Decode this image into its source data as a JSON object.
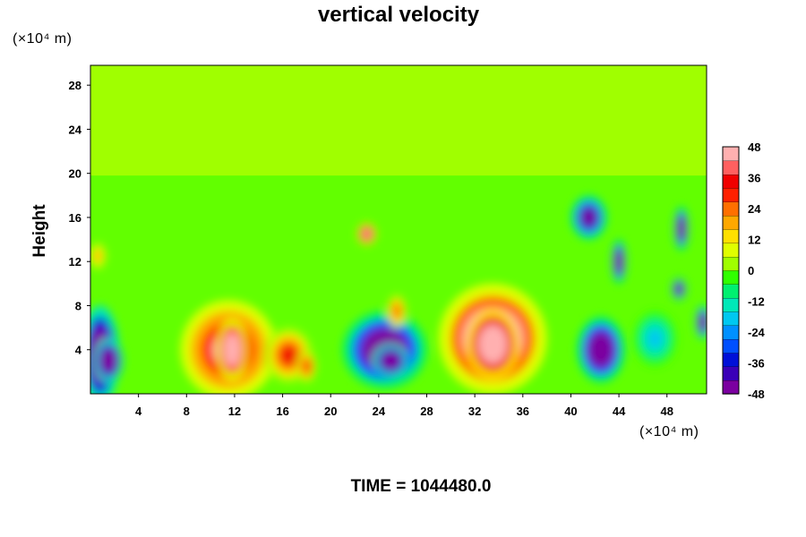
{
  "chart_data": {
    "type": "heatmap",
    "title": "vertical velocity",
    "ylabel": "Height",
    "x_unit": "(×10⁴ m)",
    "y_unit": "(×10⁴ m)",
    "footer": "TIME = 1044480.0",
    "xlim": [
      0,
      51.3
    ],
    "ylim": [
      0,
      29.8
    ],
    "x_ticks": [
      "4",
      "8",
      "12",
      "16",
      "20",
      "24",
      "28",
      "32",
      "36",
      "40",
      "44",
      "48"
    ],
    "y_ticks": [
      "4",
      "8",
      "12",
      "16",
      "20",
      "24",
      "28"
    ],
    "colorbar": {
      "min": -48,
      "max": 48,
      "ticks": [
        "48",
        "36",
        "24",
        "12",
        "0",
        "-12",
        "-24",
        "-36",
        "-48"
      ]
    },
    "background_value": 0,
    "features": [
      {
        "x": 0.8,
        "y": 3.5,
        "rx": 1.6,
        "ry": 4.5,
        "value": -46
      },
      {
        "x": 1.5,
        "y": 3.0,
        "rx": 1.2,
        "ry": 2.0,
        "value": -48
      },
      {
        "x": 0.6,
        "y": 12.5,
        "rx": 0.7,
        "ry": 1.2,
        "value": 12
      },
      {
        "x": 11.5,
        "y": 4.0,
        "rx": 4.0,
        "ry": 4.5,
        "value": 26
      },
      {
        "x": 11.8,
        "y": 4.0,
        "rx": 1.3,
        "ry": 2.8,
        "value": 38
      },
      {
        "x": 16.5,
        "y": 3.5,
        "rx": 2.0,
        "ry": 2.5,
        "value": 20
      },
      {
        "x": 18.0,
        "y": 2.5,
        "rx": 0.8,
        "ry": 1.5,
        "value": 18
      },
      {
        "x": 23.0,
        "y": 14.5,
        "rx": 0.8,
        "ry": 1.0,
        "value": 30
      },
      {
        "x": 24.5,
        "y": 4.0,
        "rx": 3.5,
        "ry": 3.5,
        "value": -40
      },
      {
        "x": 25.0,
        "y": 3.0,
        "rx": 1.5,
        "ry": 1.5,
        "value": -48
      },
      {
        "x": 25.5,
        "y": 7.5,
        "rx": 0.8,
        "ry": 1.5,
        "value": 16
      },
      {
        "x": 33.5,
        "y": 5.0,
        "rx": 4.5,
        "ry": 5.0,
        "value": 36
      },
      {
        "x": 33.5,
        "y": 4.5,
        "rx": 2.2,
        "ry": 3.2,
        "value": 48
      },
      {
        "x": 42.5,
        "y": 4.0,
        "rx": 2.0,
        "ry": 3.0,
        "value": -38
      },
      {
        "x": 41.5,
        "y": 16.0,
        "rx": 1.5,
        "ry": 2.0,
        "value": -34
      },
      {
        "x": 44.0,
        "y": 12.0,
        "rx": 0.6,
        "ry": 2.0,
        "value": -40
      },
      {
        "x": 49.2,
        "y": 15.0,
        "rx": 0.6,
        "ry": 2.0,
        "value": -40
      },
      {
        "x": 49.0,
        "y": 9.5,
        "rx": 0.6,
        "ry": 1.0,
        "value": -38
      },
      {
        "x": 51.0,
        "y": 6.5,
        "rx": 0.6,
        "ry": 1.5,
        "value": -44
      },
      {
        "x": 47.0,
        "y": 5.0,
        "rx": 1.8,
        "ry": 2.5,
        "value": -10
      }
    ]
  }
}
